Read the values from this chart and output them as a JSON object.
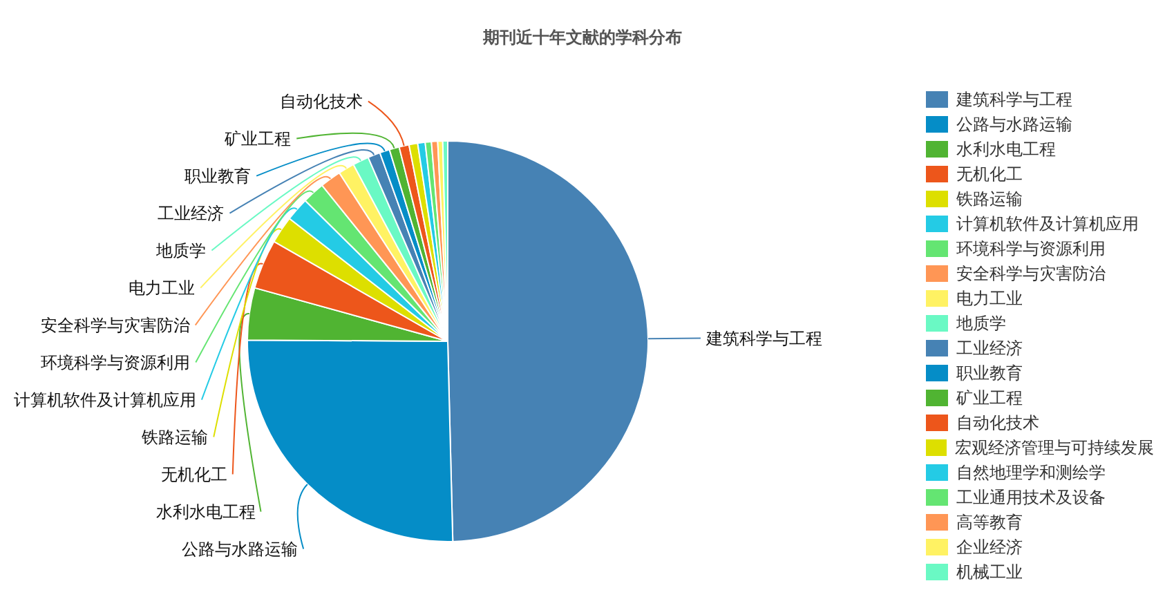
{
  "chart_data": {
    "type": "pie",
    "title": "期刊近十年文献的学科分布",
    "categories": [
      "建筑科学与工程",
      "公路与水路运输",
      "水利水电工程",
      "无机化工",
      "铁路运输",
      "计算机软件及计算机应用",
      "环境科学与资源利用",
      "安全科学与灾害防治",
      "电力工业",
      "地质学",
      "工业经济",
      "职业教育",
      "矿业工程",
      "自动化技术",
      "宏观经济管理与可持续发展",
      "自然地理学和测绘学",
      "工业通用技术及设备",
      "高等教育",
      "企业经济",
      "机械工业"
    ],
    "values": [
      49.6,
      25.5,
      4.2,
      4.0,
      2.2,
      1.9,
      1.8,
      1.7,
      1.3,
      1.3,
      1.0,
      0.8,
      0.8,
      0.8,
      0.7,
      0.6,
      0.5,
      0.5,
      0.4,
      0.4
    ],
    "colors": [
      "#4682b4",
      "#058dc7",
      "#50b432",
      "#ed561b",
      "#dddf00",
      "#24cbe5",
      "#64e572",
      "#ff9655",
      "#fff263",
      "#6af9c4",
      "#4682b4",
      "#058dc7",
      "#50b432",
      "#ed561b",
      "#dddf00",
      "#24cbe5",
      "#64e572",
      "#ff9655",
      "#fff263",
      "#6af9c4"
    ],
    "legend": "right"
  }
}
